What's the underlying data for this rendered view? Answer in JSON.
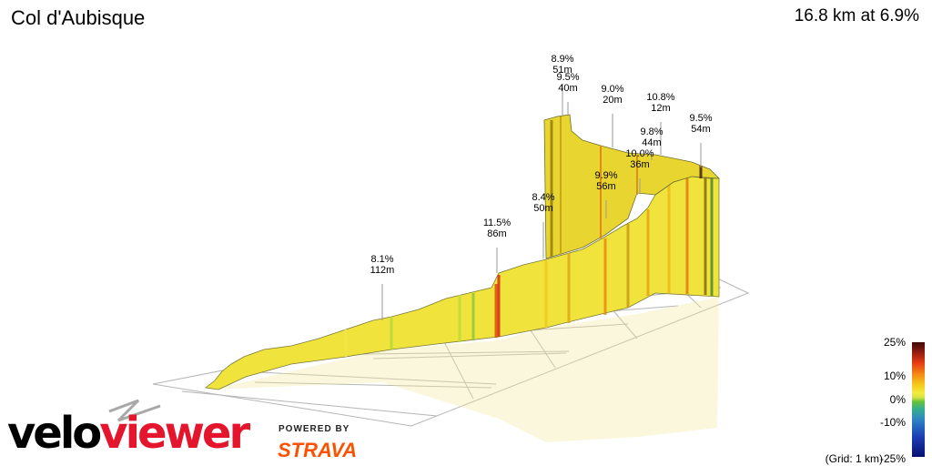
{
  "header": {
    "title": "Col d'Aubisque",
    "summary": "16.8 km at 6.9%"
  },
  "legend": {
    "ticks": [
      "25%",
      "10%",
      "0%",
      "-10%",
      "-25%"
    ],
    "grid_note": "(Grid: 1 km)"
  },
  "branding": {
    "logo_part1": "velo",
    "logo_part2": "viewer",
    "powered_by": "POWERED BY",
    "partner": "STRAVA"
  },
  "colors": {
    "steep": "#c8161d",
    "moderate": "#f3b419",
    "easy": "#f2ea3a",
    "flat": "#66c23a"
  },
  "icons": [
    "north-arrow-icon"
  ],
  "chart_data": {
    "type": "area",
    "title": "Col d'Aubisque",
    "subtitle": "16.8 km at 6.9%",
    "grid": true,
    "legend_position": "right",
    "annotations": [
      {
        "km": 5.8,
        "gradient": "8.1%",
        "gain": "112m"
      },
      {
        "km": 9.6,
        "gradient": "11.5%",
        "gain": "86m"
      },
      {
        "km": 12.9,
        "gradient": "8.4%",
        "gain": "50m"
      },
      {
        "km": 13.6,
        "gradient": "8.9%",
        "gain": "51m"
      },
      {
        "km": 13.8,
        "gradient": "9.5%",
        "gain": "40m"
      },
      {
        "km": 15.4,
        "gradient": "9.9%",
        "gain": "56m"
      },
      {
        "km": 14.4,
        "gradient": "9.0%",
        "gain": "20m"
      },
      {
        "km": 16.0,
        "gradient": "10.0%",
        "gain": "36m"
      },
      {
        "km": 16.3,
        "gradient": "9.8%",
        "gain": "44m"
      },
      {
        "km": 15.5,
        "gradient": "10.8%",
        "gain": "12m"
      },
      {
        "km": 16.8,
        "gradient": "9.5%",
        "gain": "54m"
      }
    ]
  }
}
